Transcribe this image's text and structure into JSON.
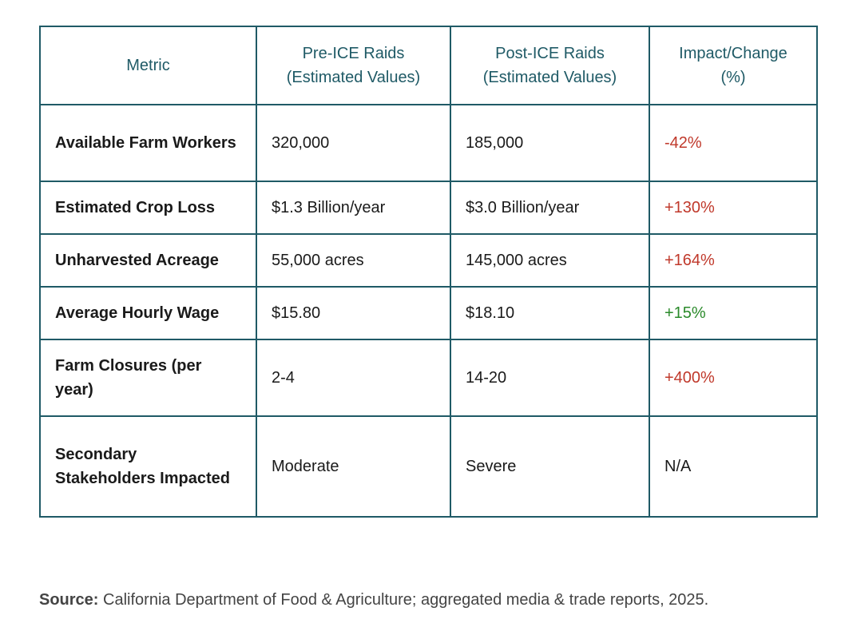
{
  "table": {
    "headers": [
      [
        "Metric"
      ],
      [
        "Pre-ICE Raids",
        "(Estimated Values)"
      ],
      [
        "Post-ICE Raids",
        "(Estimated Values)"
      ],
      [
        "Impact/Change",
        "(%)"
      ]
    ],
    "rows": [
      {
        "metric": "Available Farm Workers",
        "pre": "320,000",
        "post": "185,000",
        "change": "-42%",
        "change_color": "#c0392b"
      },
      {
        "metric": "Estimated Crop Loss",
        "pre": "$1.3 Billion/year",
        "post": "$3.0 Billion/year",
        "change": "+130%",
        "change_color": "#c0392b"
      },
      {
        "metric": "Unharvested Acreage",
        "pre": "55,000 acres",
        "post": "145,000 acres",
        "change": "+164%",
        "change_color": "#c0392b"
      },
      {
        "metric": "Average Hourly Wage",
        "pre": "$15.80",
        "post": "$18.10",
        "change": "+15%",
        "change_color": "#2a8a2a"
      },
      {
        "metric": "Farm Closures (per year)",
        "pre": "2-4",
        "post": "14-20",
        "change": "+400%",
        "change_color": "#c0392b"
      },
      {
        "metric": "Secondary Stakeholders Impacted",
        "pre": "Moderate",
        "post": "Severe",
        "change": "N/A",
        "change_color": "#1a1a1a"
      }
    ]
  },
  "source": {
    "label": "Source:",
    "text": "California Department of Food & Agriculture; aggregated media & trade reports, 2025."
  }
}
